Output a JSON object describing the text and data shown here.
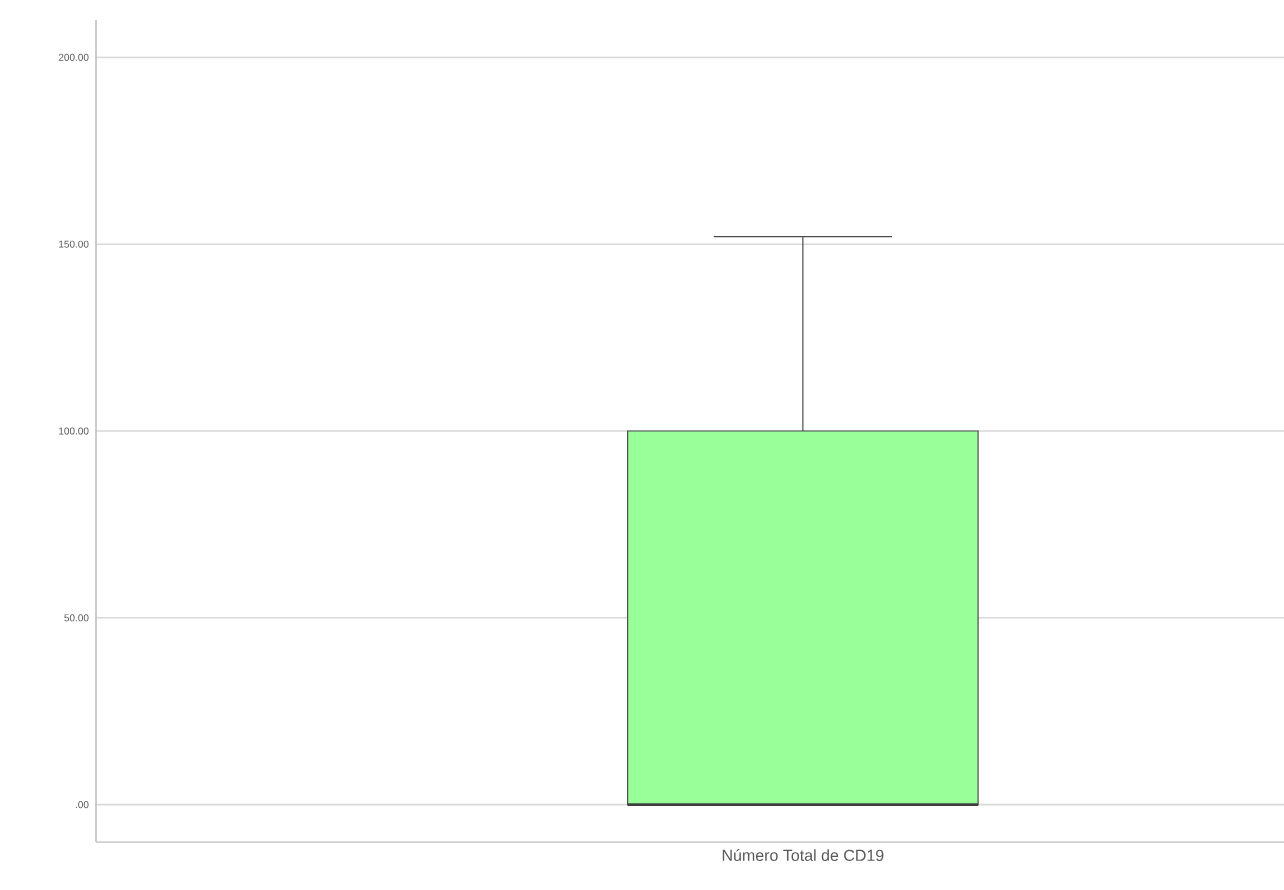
{
  "chart_data": {
    "type": "box",
    "categories": [
      "Número Total de CD19"
    ],
    "boxes": [
      {
        "low": 0,
        "q1": 0,
        "median": 0,
        "q3": 100,
        "high": 152
      }
    ],
    "color": "#99ff99",
    "ylim": [
      -10,
      210
    ],
    "yticks": [
      {
        "value": 0,
        "label": ".00"
      },
      {
        "value": 50,
        "label": "50.00"
      },
      {
        "value": 100,
        "label": "100.00"
      },
      {
        "value": 150,
        "label": "150.00"
      },
      {
        "value": 200,
        "label": "200.00"
      }
    ],
    "grid": "y"
  }
}
